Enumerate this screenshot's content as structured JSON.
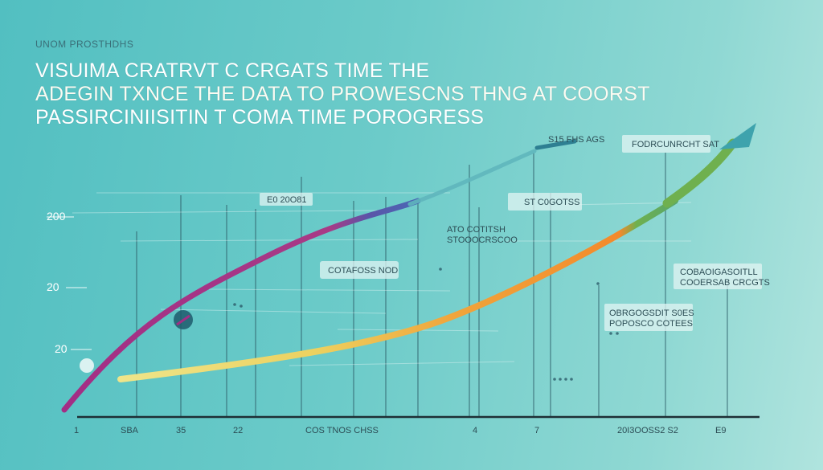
{
  "title": {
    "kicker": "UNOM PROSTHDHS",
    "line1": "VISUIMA CRATRVT C CRGATS TIME THE",
    "line2": "ADEGIN TXNCE THE DATA TO PROWESCNS THNG AT COORST",
    "line3": "PASSIRCINIISITIN T COMA TIME POROGRESS"
  },
  "chart_data": {
    "type": "line",
    "title": "VISUIMA CRATRVT C CRGATS TIME THE ADEGIN TXNCE THE DATA TO PROWESCNS THNG AT COORST PASSIRCINIISITIN T COMA TIME POROGRESS",
    "xlabel": "",
    "ylabel": "",
    "ytick_labels": [
      "20",
      "20",
      "200"
    ],
    "xtick_labels": [
      "1",
      "SBA",
      "35",
      "22",
      "COS TNOS CHSS",
      "4",
      "7",
      "20I3OOSS2 S2",
      "E9"
    ],
    "series": [
      {
        "color": "#a32e85",
        "values": [
          0.0,
          0.17,
          0.36,
          0.53,
          0.68,
          0.8
        ]
      },
      {
        "color": "#f09a35",
        "values": [
          0.12,
          0.18,
          0.27,
          0.42,
          0.61,
          0.85
        ]
      }
    ],
    "colors": {
      "background": "#6ccbc9",
      "line_magenta": "#a32e85",
      "line_purple": "#5b54a8",
      "arrow_teal": "#46a9b2",
      "line_yellow": "#e8d667",
      "line_orange": "#f08a2c",
      "segment_green": "#6fb04f",
      "arrow_head": "#3ea3ad"
    },
    "annotations": [
      "E0 20O81",
      "ATO COTITSH STOOOCRSCOO",
      "COTAFOSS NOD",
      "ST C0GOTSS",
      "S15 FHS AGS",
      "FODRCUNRCHT SAT",
      "COBAOIGASOITLL COOERSAB CRCGTS",
      "OBRGOGSDIT S0ES POPOSCO COTEES"
    ],
    "grid": true,
    "legend": "none"
  }
}
